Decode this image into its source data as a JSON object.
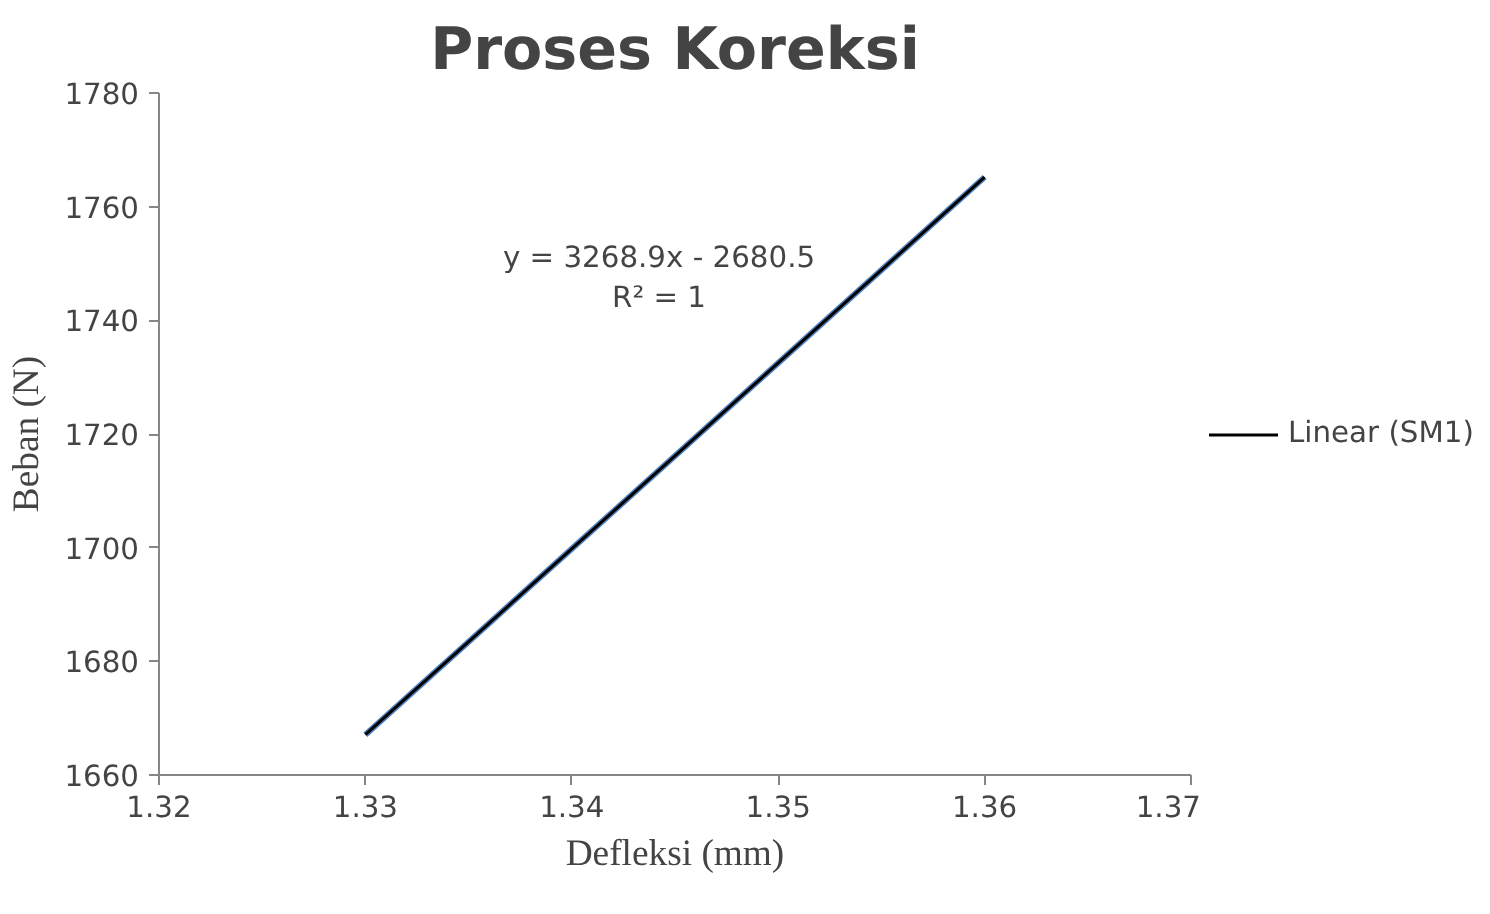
{
  "chart_data": {
    "type": "line",
    "title": "Proses Koreksi",
    "xlabel": "Defleksi (mm)",
    "ylabel": "Beban (N)",
    "series": [
      {
        "color": "#4f81bd",
        "x": [
          1.33,
          1.34,
          1.35,
          1.36
        ],
        "values": [
          1667.1,
          1699.8,
          1732.5,
          1765.2
        ]
      },
      {
        "name": "Linear (SM1)",
        "color": "#000000",
        "x": [
          1.33,
          1.36
        ],
        "values": [
          1667.1,
          1765.2
        ]
      }
    ],
    "xlim": [
      1.32,
      1.37
    ],
    "xticks": [
      1.32,
      1.33,
      1.34,
      1.35,
      1.36,
      1.37
    ],
    "ylim": [
      1660,
      1780
    ],
    "yticks": [
      1660,
      1680,
      1700,
      1720,
      1740,
      1760,
      1780
    ],
    "annotations": [
      "y = 3268.9x - 2680.5",
      "R² = 1"
    ],
    "grid": false,
    "legend": "right",
    "marker": "none"
  }
}
